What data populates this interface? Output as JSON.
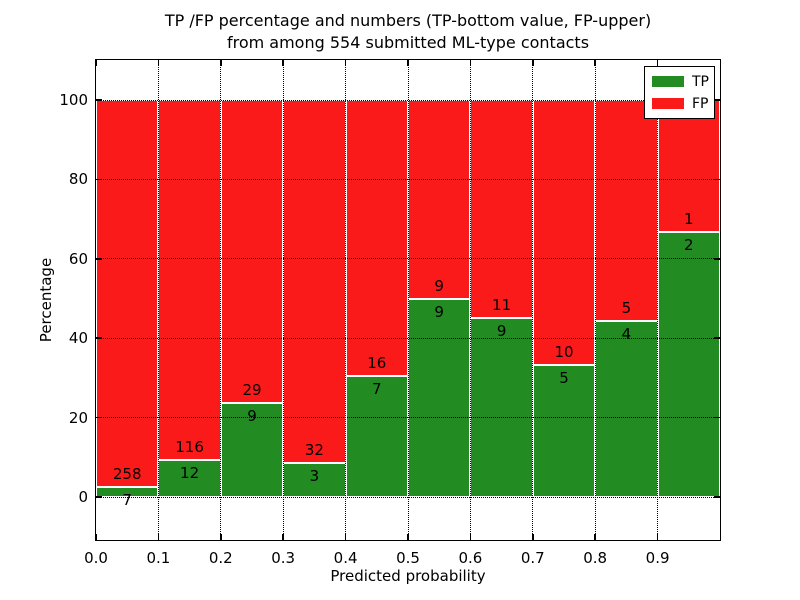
{
  "figure": {
    "background": "#ffffff",
    "title_line1": "TP /FP percentage and numbers (TP-bottom value, FP-upper)",
    "title_line2": "from among 554 submitted ML-type contacts"
  },
  "chart_data": {
    "type": "bar",
    "variant": "stacked-percentage",
    "title": "TP /FP percentage and numbers (TP-bottom value, FP-upper)\nfrom among 554 submitted ML-type contacts",
    "xlabel": "Predicted probability",
    "ylabel": "Percentage",
    "total_contacts": 554,
    "xlim": [
      0.0,
      1.0
    ],
    "bin_width": 0.1,
    "x_ticks": [
      0.0,
      0.1,
      0.2,
      0.3,
      0.4,
      0.5,
      0.6,
      0.7,
      0.8,
      0.9
    ],
    "x_tick_labels": [
      "0.0",
      "0.1",
      "0.2",
      "0.3",
      "0.4",
      "0.5",
      "0.6",
      "0.7",
      "0.8",
      "0.9"
    ],
    "y_ticks": [
      0,
      20,
      40,
      60,
      80,
      100
    ],
    "y_tick_labels": [
      "0",
      "20",
      "40",
      "60",
      "80",
      "100"
    ],
    "grid": {
      "style": "dotted",
      "color": "#000000",
      "horizontal": true,
      "vertical": true
    },
    "series": [
      {
        "name": "TP",
        "color": "#228B22",
        "values": [
          7,
          12,
          9,
          3,
          7,
          9,
          9,
          5,
          4,
          2
        ]
      },
      {
        "name": "FP",
        "color": "#FA1A1A",
        "values": [
          258,
          116,
          29,
          32,
          16,
          9,
          11,
          10,
          5,
          1
        ]
      }
    ],
    "tp_percent": [
      2.64,
      9.38,
      23.68,
      8.57,
      30.43,
      50.0,
      45.0,
      33.33,
      44.44,
      66.67
    ],
    "legend": {
      "position": "upper right",
      "entries": [
        {
          "label": "TP",
          "color": "#228B22"
        },
        {
          "label": "FP",
          "color": "#FA1A1A"
        }
      ]
    }
  }
}
